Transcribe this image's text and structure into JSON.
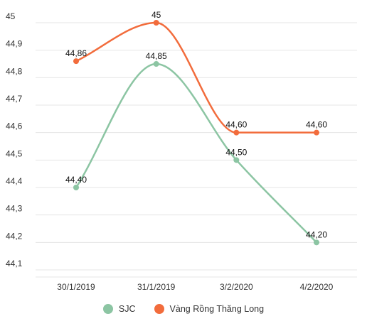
{
  "chart_data": {
    "type": "line",
    "categories": [
      "30/1/2019",
      "31/1/2019",
      "3/2/2020",
      "4/2/2020"
    ],
    "series": [
      {
        "name": "SJC",
        "color": "#8cc5a3",
        "values": [
          44.4,
          44.85,
          44.5,
          44.2
        ],
        "labels": [
          "44,40",
          "44,85",
          "44,50",
          "44,20"
        ]
      },
      {
        "name": "Vàng Rồng Thăng Long",
        "color": "#f26c3c",
        "values": [
          44.86,
          45,
          44.6,
          44.6
        ],
        "labels": [
          "44,86",
          "45",
          "44,60",
          "44,60"
        ]
      }
    ],
    "yticks": [
      45,
      44.9,
      44.8,
      44.7,
      44.6,
      44.5,
      44.4,
      44.3,
      44.2,
      44.1
    ],
    "ytick_labels": [
      "45",
      "44,9",
      "44,8",
      "44,7",
      "44,6",
      "44,5",
      "44,4",
      "44,3",
      "44,2",
      "44,1"
    ],
    "ylim": [
      44.1,
      45
    ],
    "grid": true,
    "legend_position": "bottom"
  }
}
